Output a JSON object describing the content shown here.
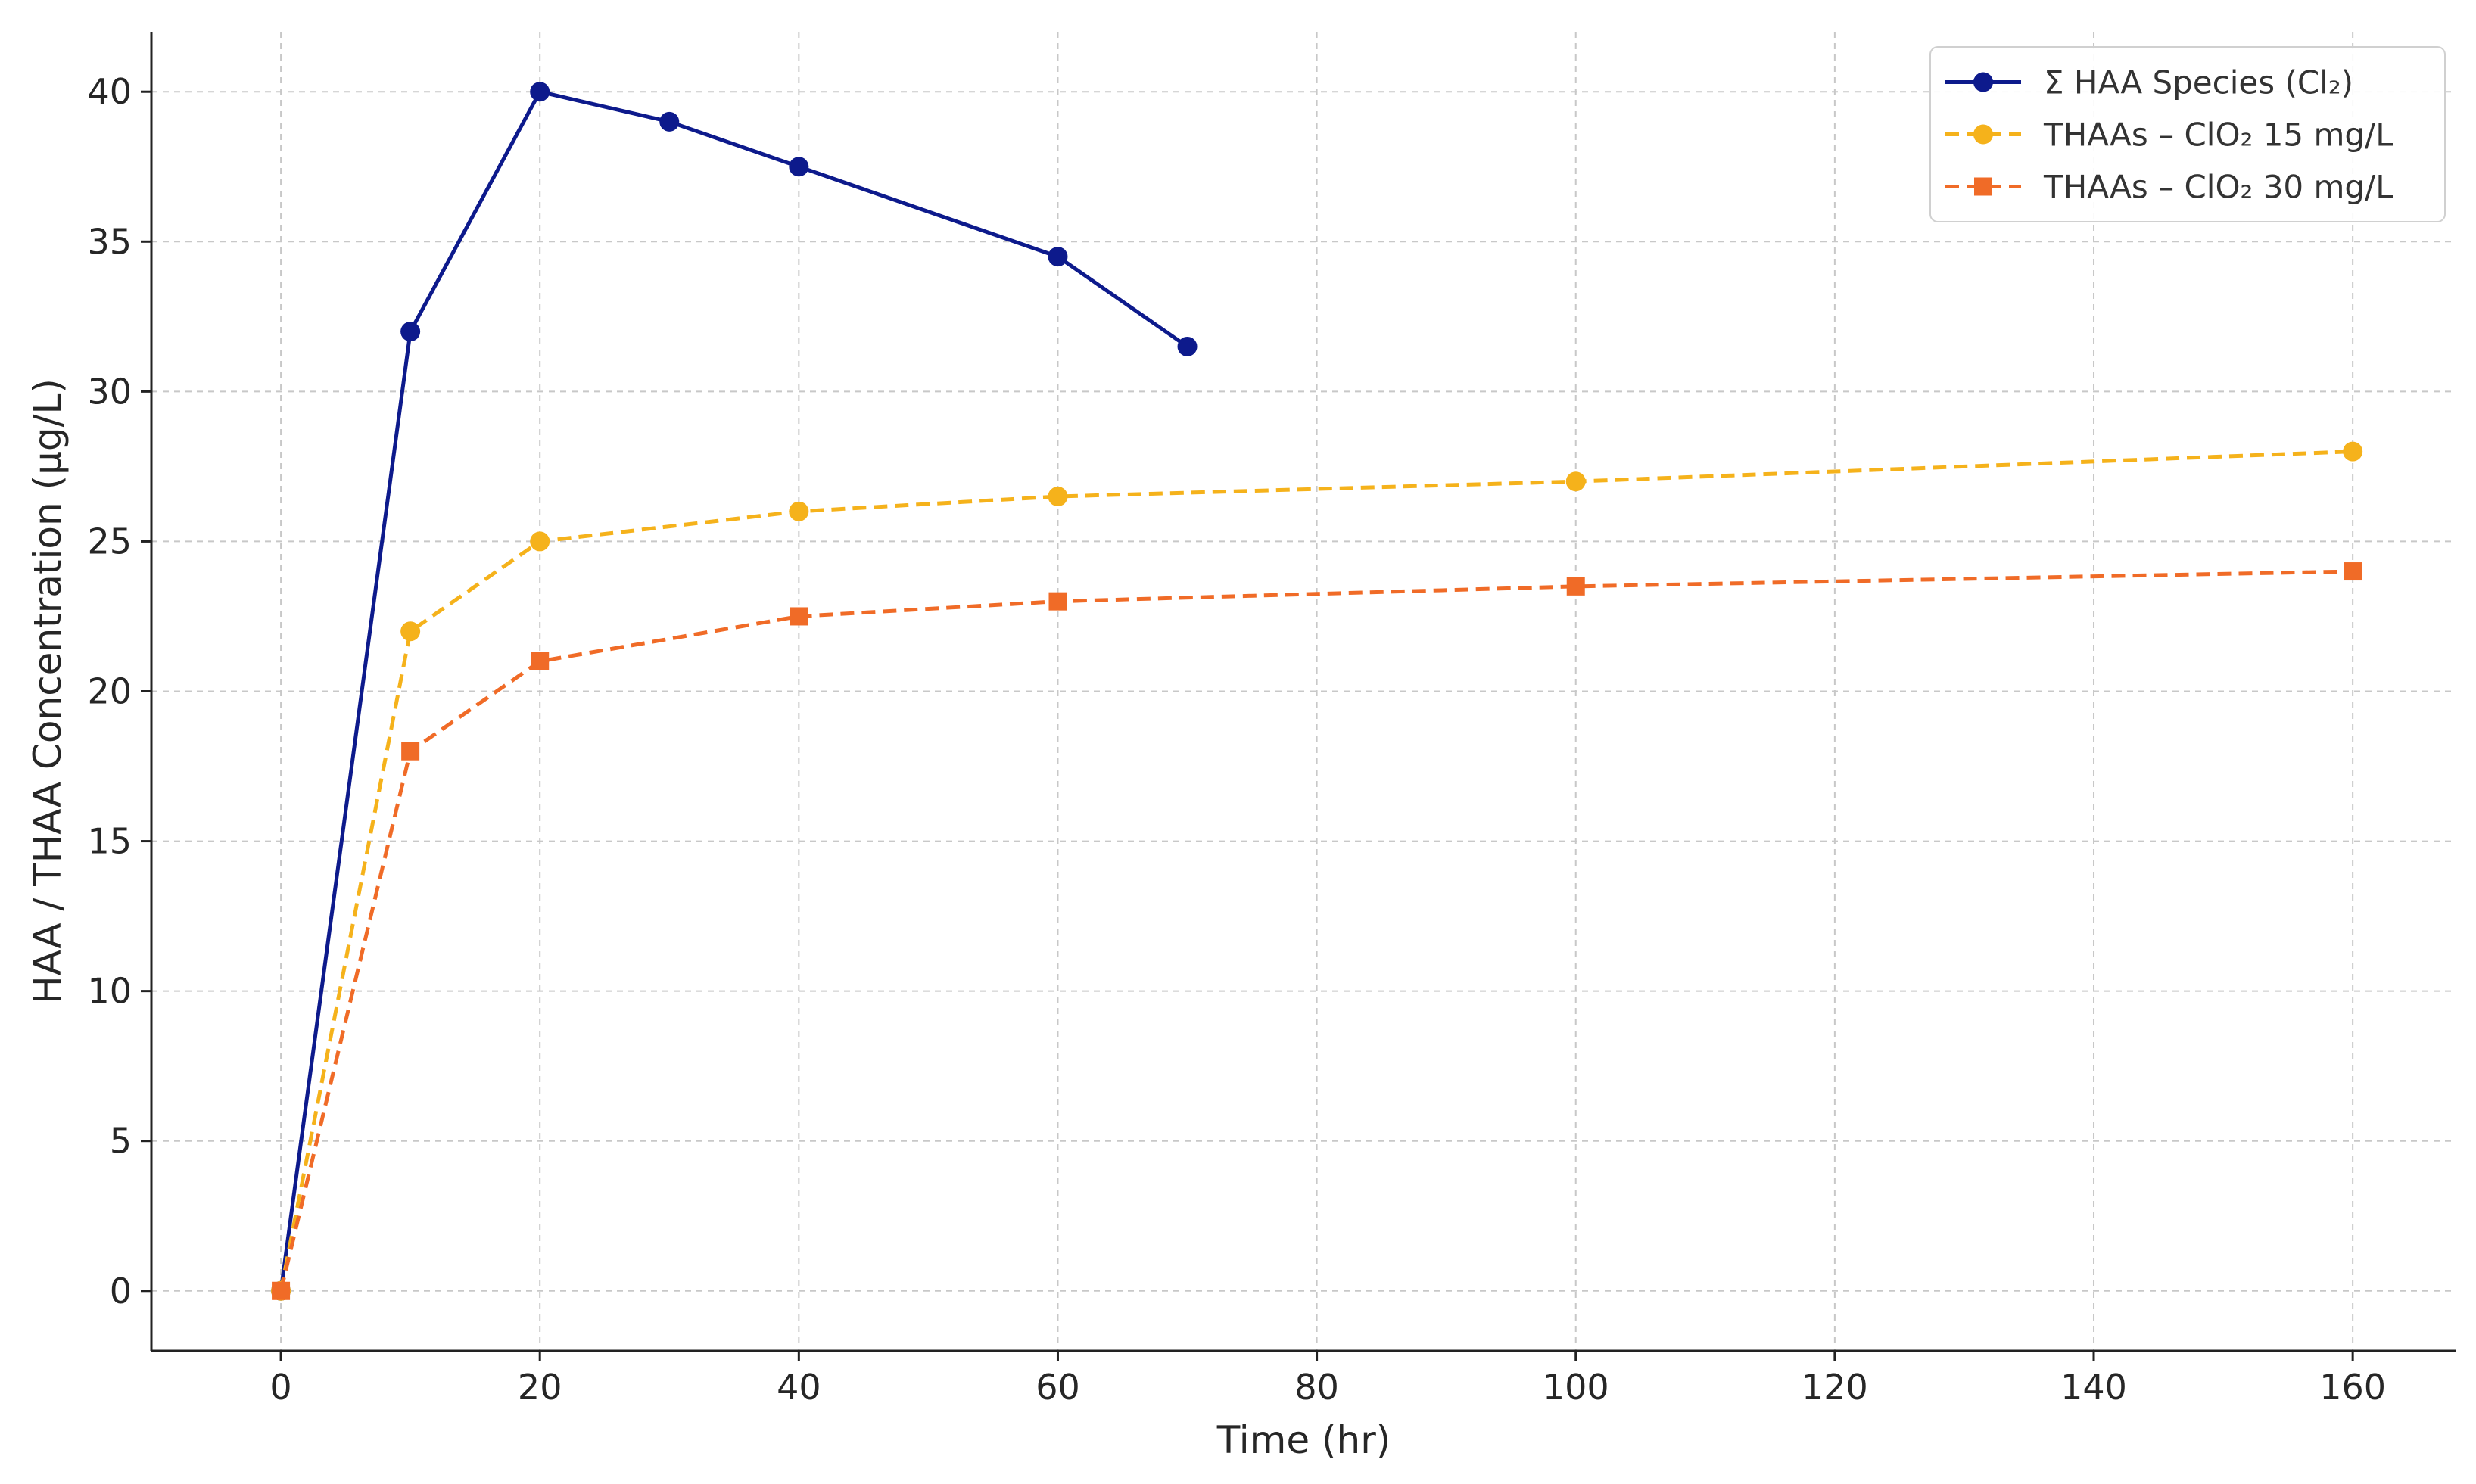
{
  "chart_data": {
    "type": "line",
    "xlabel": "Time (hr)",
    "ylabel": "HAA / THAA Concentration (µg/L)",
    "xlim": [
      -10,
      168
    ],
    "ylim": [
      -2,
      42
    ],
    "xticks": [
      0,
      20,
      40,
      60,
      80,
      100,
      120,
      140,
      160
    ],
    "yticks": [
      0,
      5,
      10,
      15,
      20,
      25,
      30,
      35,
      40
    ],
    "grid": true,
    "legend_position": "top-right",
    "series": [
      {
        "name": "Σ HAA Species (Cl₂)",
        "color": "#0d1a8c",
        "line_style": "solid",
        "marker": "circle",
        "x": [
          0,
          10,
          20,
          30,
          40,
          60,
          70
        ],
        "y": [
          0,
          32,
          40,
          39,
          37.5,
          34.5,
          31.5
        ]
      },
      {
        "name": "THAAs – ClO₂ 15 mg/L",
        "color": "#f5b21b",
        "line_style": "dashed",
        "marker": "circle",
        "x": [
          0,
          10,
          20,
          40,
          60,
          100,
          160
        ],
        "y": [
          0,
          22,
          25,
          26,
          26.5,
          27,
          28
        ]
      },
      {
        "name": "THAAs – ClO₂ 30 mg/L",
        "color": "#f06b27",
        "line_style": "dashed",
        "marker": "square",
        "x": [
          0,
          10,
          20,
          40,
          60,
          100,
          160
        ],
        "y": [
          0,
          18,
          21,
          22.5,
          23,
          23.5,
          24
        ]
      }
    ]
  }
}
